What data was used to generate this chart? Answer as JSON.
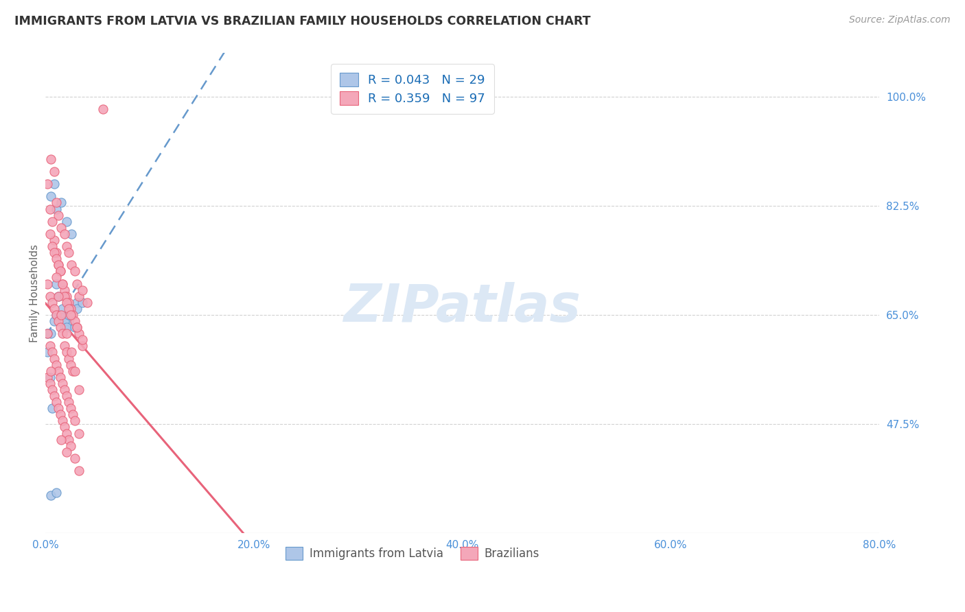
{
  "title": "IMMIGRANTS FROM LATVIA VS BRAZILIAN FAMILY HOUSEHOLDS CORRELATION CHART",
  "source_text": "Source: ZipAtlas.com",
  "ylabel": "Family Households",
  "xlabel_ticks": [
    "0.0%",
    "20.0%",
    "40.0%",
    "60.0%",
    "80.0%"
  ],
  "xlabel_vals": [
    0.0,
    20.0,
    40.0,
    60.0,
    80.0
  ],
  "ylabel_ticks": [
    "100.0%",
    "82.5%",
    "65.0%",
    "47.5%"
  ],
  "ylabel_vals": [
    100.0,
    82.5,
    65.0,
    47.5
  ],
  "xlim": [
    0.0,
    80.0
  ],
  "ylim": [
    30.0,
    107.0
  ],
  "legend1_label": "R = 0.043   N = 29",
  "legend2_label": "R = 0.359   N = 97",
  "legend_xlabel1": "Immigrants from Latvia",
  "legend_xlabel2": "Brazilians",
  "blue_color": "#aec6e8",
  "pink_color": "#f4a7b9",
  "blue_line_color": "#6699cc",
  "pink_line_color": "#e8637a",
  "legend_r_color": "#1a6cb5",
  "axis_label_color": "#4a90d9",
  "title_color": "#333333",
  "watermark_color": "#dce8f5",
  "grid_color": "#cccccc",
  "latvia_x": [
    1.0,
    1.5,
    2.0,
    2.5,
    3.0,
    1.0,
    0.5,
    0.8,
    1.2,
    1.8,
    2.2,
    3.0,
    3.5,
    0.5,
    0.2,
    0.2,
    0.4,
    0.6,
    0.8,
    1.0,
    1.2,
    1.4,
    1.6,
    1.8,
    2.0,
    2.2,
    2.8,
    0.5,
    1.0
  ],
  "latvia_y": [
    82.0,
    83.0,
    80.0,
    78.0,
    67.0,
    70.0,
    84.0,
    86.0,
    65.0,
    63.0,
    64.0,
    66.0,
    67.0,
    62.0,
    62.0,
    59.0,
    55.0,
    50.0,
    64.0,
    65.0,
    68.0,
    65.0,
    66.0,
    64.0,
    63.0,
    65.0,
    63.0,
    36.0,
    36.5
  ],
  "brazil_x": [
    0.5,
    0.8,
    1.0,
    1.2,
    1.5,
    1.8,
    2.0,
    2.2,
    2.5,
    2.8,
    3.0,
    3.2,
    3.5,
    4.0,
    0.2,
    0.4,
    0.6,
    0.8,
    1.0,
    1.2,
    1.4,
    1.6,
    1.8,
    2.0,
    2.2,
    2.4,
    2.6,
    2.8,
    3.0,
    3.2,
    3.5,
    0.4,
    0.6,
    0.8,
    1.0,
    1.2,
    1.4,
    1.6,
    1.8,
    2.0,
    2.2,
    2.4,
    3.0,
    3.5,
    0.2,
    0.4,
    0.6,
    0.8,
    1.0,
    1.2,
    1.4,
    1.6,
    1.8,
    2.0,
    2.2,
    2.4,
    2.6,
    0.2,
    0.4,
    0.6,
    0.8,
    1.0,
    1.2,
    1.4,
    1.6,
    1.8,
    2.0,
    2.2,
    2.4,
    2.6,
    2.8,
    3.2,
    0.2,
    0.4,
    0.6,
    0.8,
    1.0,
    1.2,
    1.4,
    1.6,
    1.8,
    2.0,
    2.2,
    2.4,
    2.8,
    3.2,
    5.5,
    0.5,
    1.0,
    1.2,
    1.5,
    2.0,
    2.5,
    2.8,
    3.2,
    1.5,
    2.0
  ],
  "brazil_y": [
    90.0,
    88.0,
    83.0,
    81.0,
    79.0,
    78.0,
    76.0,
    75.0,
    73.0,
    72.0,
    70.0,
    68.0,
    69.0,
    67.0,
    86.0,
    82.0,
    80.0,
    77.0,
    75.0,
    73.0,
    72.0,
    70.0,
    69.0,
    68.0,
    67.0,
    66.0,
    65.0,
    64.0,
    63.0,
    62.0,
    60.0,
    78.0,
    76.0,
    75.0,
    74.0,
    73.0,
    72.0,
    70.0,
    68.0,
    67.0,
    66.0,
    65.0,
    63.0,
    61.0,
    70.0,
    68.0,
    67.0,
    66.0,
    65.0,
    64.0,
    63.0,
    62.0,
    60.0,
    59.0,
    58.0,
    57.0,
    56.0,
    62.0,
    60.0,
    59.0,
    58.0,
    57.0,
    56.0,
    55.0,
    54.0,
    53.0,
    52.0,
    51.0,
    50.0,
    49.0,
    48.0,
    46.0,
    55.0,
    54.0,
    53.0,
    52.0,
    51.0,
    50.0,
    49.0,
    48.0,
    47.0,
    46.0,
    45.0,
    44.0,
    42.0,
    40.0,
    98.0,
    56.0,
    71.0,
    68.0,
    65.0,
    62.0,
    59.0,
    56.0,
    53.0,
    45.0,
    43.0
  ],
  "latvia_trend_x": [
    0.0,
    80.0
  ],
  "brazil_trend_x": [
    0.0,
    80.0
  ]
}
